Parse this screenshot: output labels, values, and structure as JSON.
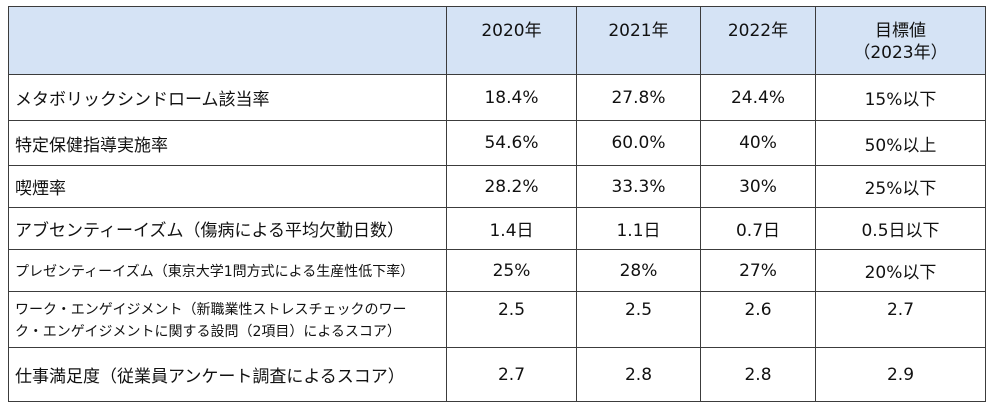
{
  "table": {
    "headers": [
      "",
      "2020年",
      "2021年",
      "2022年",
      "目標値",
      "（2023年）"
    ],
    "rows": [
      {
        "label": "メタボリックシンドローム該当率",
        "values": [
          "18.4%",
          "27.8%",
          "24.4%",
          "15%以下"
        ]
      },
      {
        "label": "特定保健指導実施率",
        "values": [
          "54.6%",
          "60.0%",
          "40%",
          "50%以上"
        ]
      },
      {
        "label": "喫煙率",
        "values": [
          "28.2%",
          "33.3%",
          "30%",
          "25%以下"
        ]
      },
      {
        "label": "アブセンティーイズム（傷病による平均欠勤日数）",
        "values": [
          "1.4日",
          "1.1日",
          "0.7日",
          "0.5日以下"
        ]
      },
      {
        "label": "プレゼンティーイズム（東京大学1問方式による生産性低下率）",
        "values": [
          "25%",
          "28%",
          "27%",
          "20%以下"
        ]
      },
      {
        "label_line1": "ワーク・エンゲイジメント（新職業性ストレスチェックのワー",
        "label_line2": "ク・エンゲイジメントに関する設問（2項目）によるスコア）",
        "values": [
          "2.5",
          "2.5",
          "2.6",
          "2.7"
        ]
      },
      {
        "label": "仕事満足度（従業員アンケート調査によるスコア）",
        "values": [
          "2.7",
          "2.8",
          "2.8",
          "2.9"
        ]
      }
    ]
  }
}
